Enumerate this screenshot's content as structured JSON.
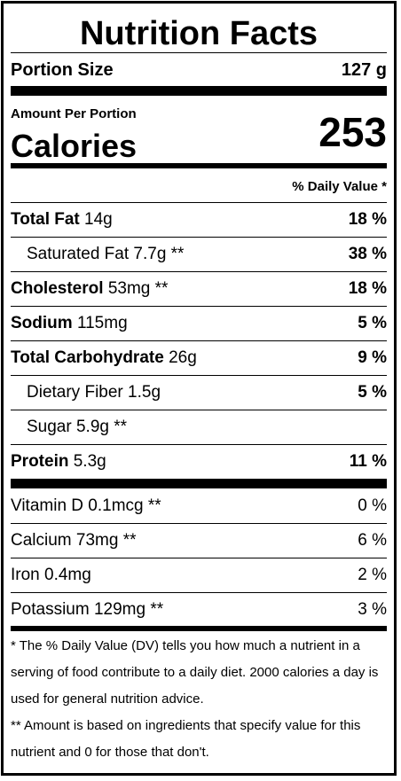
{
  "title": "Nutrition Facts",
  "portion": {
    "label": "Portion Size",
    "value": "127 g"
  },
  "amount_per_portion": "Amount Per Portion",
  "calories": {
    "label": "Calories",
    "value": "253"
  },
  "dv_header": "% Daily Value *",
  "nutrients": [
    {
      "name": "Total Fat",
      "amount": "14g",
      "dv": "18 %"
    },
    {
      "name": "Saturated Fat",
      "amount": "7.7g **",
      "dv": "38 %"
    },
    {
      "name": "Cholesterol",
      "amount": "53mg **",
      "dv": "18 %"
    },
    {
      "name": "Sodium",
      "amount": "115mg",
      "dv": "5 %"
    },
    {
      "name": "Total Carbohydrate",
      "amount": "26g",
      "dv": "9 %"
    },
    {
      "name": "Dietary Fiber",
      "amount": "1.5g",
      "dv": "5 %"
    },
    {
      "name": "Sugar",
      "amount": "5.9g **",
      "dv": ""
    },
    {
      "name": "Protein",
      "amount": "5.3g",
      "dv": "11 %"
    }
  ],
  "vitamins": [
    {
      "text": "Vitamin D 0.1mcg **",
      "dv": "0 %"
    },
    {
      "text": "Calcium 73mg **",
      "dv": "6 %"
    },
    {
      "text": "Iron 0.4mg",
      "dv": "2 %"
    },
    {
      "text": "Potassium 129mg **",
      "dv": "3 %"
    }
  ],
  "footnotes": [
    "* The % Daily Value (DV) tells you how much a nutrient in a serving of food contribute to a daily diet. 2000 calories a day is used for general nutrition advice.",
    "** Amount is based on ingredients that specify value for this nutrient and 0 for those that don't."
  ]
}
